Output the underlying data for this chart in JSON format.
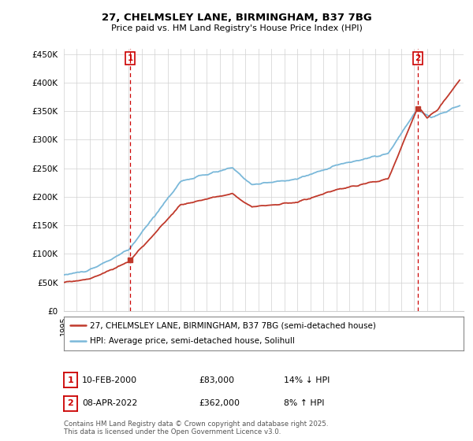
{
  "title": "27, CHELMSLEY LANE, BIRMINGHAM, B37 7BG",
  "subtitle": "Price paid vs. HM Land Registry's House Price Index (HPI)",
  "ylim": [
    0,
    460000
  ],
  "yticks": [
    0,
    50000,
    100000,
    150000,
    200000,
    250000,
    300000,
    350000,
    400000,
    450000
  ],
  "ytick_labels": [
    "£0",
    "£50K",
    "£100K",
    "£150K",
    "£200K",
    "£250K",
    "£300K",
    "£350K",
    "£400K",
    "£450K"
  ],
  "hpi_color": "#7ab8d9",
  "price_color": "#c0392b",
  "annotation_color": "#cc0000",
  "sale1_x": 2000.11,
  "sale2_x": 2022.27,
  "sale1": {
    "label": "1",
    "date": "10-FEB-2000",
    "price": "£83,000",
    "hpi": "14% ↓ HPI"
  },
  "sale2": {
    "label": "2",
    "date": "08-APR-2022",
    "price": "£362,000",
    "hpi": "8% ↑ HPI"
  },
  "legend_line1": "27, CHELMSLEY LANE, BIRMINGHAM, B37 7BG (semi-detached house)",
  "legend_line2": "HPI: Average price, semi-detached house, Solihull",
  "footer": "Contains HM Land Registry data © Crown copyright and database right 2025.\nThis data is licensed under the Open Government Licence v3.0.",
  "background_color": "#ffffff",
  "grid_color": "#d0d0d0"
}
